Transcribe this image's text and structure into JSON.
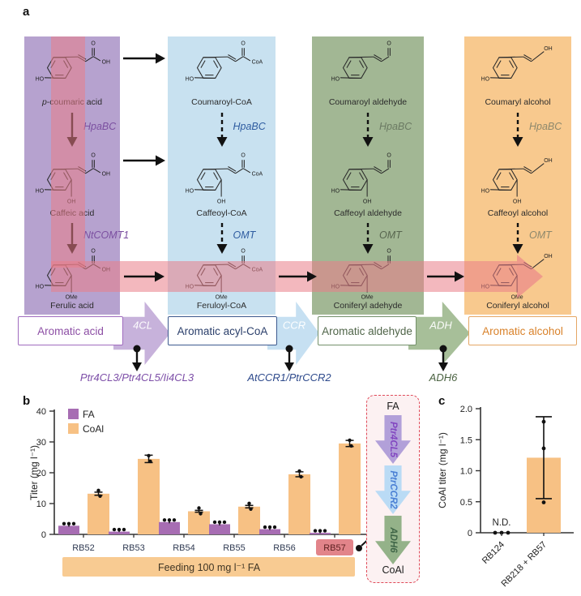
{
  "figure": {
    "panel_a_label": "a",
    "panel_b_label": "b",
    "panel_c_label": "c"
  },
  "panel_a": {
    "structure_labels": {
      "carbonyl": "O",
      "acid": "OH",
      "coa": "CoA",
      "alcohol": "OH",
      "ho": "HO",
      "oh": "OH",
      "ome": "OMe"
    },
    "columns": [
      {
        "id": "acid",
        "bg": "#b6a2cf",
        "compounds": [
          {
            "name": "p-coumaric acid",
            "head": "acid",
            "subs": [
              "HO"
            ]
          },
          {
            "name": "Caffeic acid",
            "head": "acid",
            "subs": [
              "HO",
              "OH"
            ]
          },
          {
            "name": "Ferulic acid",
            "head": "acid",
            "subs": [
              "HO",
              "OMe"
            ]
          }
        ],
        "steps": [
          {
            "enzyme": "HpaBC",
            "dashed": false,
            "color": "#7b4fa0"
          },
          {
            "enzyme": "NtCOMT1",
            "dashed": false,
            "color": "#7b4fa0"
          }
        ]
      },
      {
        "id": "acyl-coa",
        "bg": "#c8e1f0",
        "compounds": [
          {
            "name": "Coumaroyl-CoA",
            "head": "coa",
            "subs": [
              "HO"
            ]
          },
          {
            "name": "Caffeoyl-CoA",
            "head": "coa",
            "subs": [
              "HO",
              "OH"
            ]
          },
          {
            "name": "Feruloyl-CoA",
            "head": "coa",
            "subs": [
              "HO",
              "OMe"
            ]
          }
        ],
        "steps": [
          {
            "enzyme": "HpaBC",
            "dashed": true,
            "color": "#2e5ca0"
          },
          {
            "enzyme": "OMT",
            "dashed": true,
            "color": "#2e5ca0"
          }
        ]
      },
      {
        "id": "aldehyde",
        "bg": "#a2b794",
        "compounds": [
          {
            "name": "Coumaroyl aldehyde",
            "head": "aldehyde",
            "subs": [
              "HO"
            ]
          },
          {
            "name": "Caffeoyl aldehyde",
            "head": "aldehyde",
            "subs": [
              "HO",
              "OH"
            ]
          },
          {
            "name": "Coniferyl adehyde",
            "head": "aldehyde",
            "subs": [
              "HO",
              "OMe"
            ]
          }
        ],
        "steps": [
          {
            "enzyme": "HpaBC",
            "dashed": true,
            "color": "#6b7a63"
          },
          {
            "enzyme": "OMT",
            "dashed": true,
            "color": "#58664f"
          }
        ]
      },
      {
        "id": "alcohol",
        "bg": "#f8c98e",
        "compounds": [
          {
            "name": "Coumaryl alcohol",
            "head": "alcohol",
            "subs": [
              "HO"
            ]
          },
          {
            "name": "Caffeoyl alcohol",
            "head": "alcohol",
            "subs": [
              "HO",
              "OH"
            ]
          },
          {
            "name": "Coniferyl alcohol",
            "head": "alcohol",
            "subs": [
              "HO",
              "OMe"
            ]
          }
        ],
        "steps": [
          {
            "enzyme": "HpaBC",
            "dashed": true,
            "color": "#8d886c"
          },
          {
            "enzyme": "OMT",
            "dashed": true,
            "color": "#8d886c"
          }
        ]
      }
    ],
    "class_boxes": [
      {
        "label": "Aromatic acid",
        "text_color": "#8d4fa5",
        "border_color": "#a06cbf"
      },
      {
        "label": "Aromatic acyl-CoA",
        "text_color": "#2b3f6b",
        "border_color": "#3d5a8f"
      },
      {
        "label": "Aromatic aldehyde",
        "text_color": "#51664a",
        "border_color": "#74906a"
      },
      {
        "label": "Aromatic alcohol",
        "text_color": "#d9822b",
        "border_color": "#e5a765"
      }
    ],
    "step_arrows": [
      {
        "label": "4CL",
        "fill": "#c7b2db"
      },
      {
        "label": "CCR",
        "fill": "#c6e0f2"
      },
      {
        "label": "ADH",
        "fill": "#a7bf99"
      }
    ],
    "step_enzymes": [
      {
        "label": "Ptr4CL3/Ptr4CL5/Ii4CL3",
        "color": "#7d4fa8"
      },
      {
        "label": "AtCCR1/PtrCCR2",
        "color": "#2e4a8c"
      },
      {
        "label": "ADH6",
        "color": "#4b6342"
      }
    ],
    "highlight_band_color": "#e97d88"
  },
  "chart_data": [
    {
      "type": "bar",
      "panel": "b",
      "categories": [
        "RB52",
        "RB53",
        "RB54",
        "RB55",
        "RB56",
        "RB57"
      ],
      "series": [
        {
          "name": "FA",
          "color": "#a76db3",
          "values": [
            2.8,
            0.9,
            4.0,
            3.3,
            1.7,
            0.5
          ],
          "errors": [
            0.3,
            0.15,
            0.4,
            0.4,
            0.3,
            0.15
          ]
        },
        {
          "name": "CoAl",
          "color": "#f7c184",
          "values": [
            13.2,
            24.5,
            7.5,
            9.0,
            19.5,
            29.5
          ],
          "errors": [
            0.5,
            1.2,
            0.3,
            0.4,
            0.8,
            1.0
          ]
        }
      ],
      "ylabel": "Titer (mg l⁻¹)",
      "ylim": [
        0,
        40
      ],
      "yticks": [
        0,
        10,
        20,
        30,
        40
      ],
      "legend_position": "top-left",
      "annotation_band": "Feeding 100 mg l⁻¹ FA",
      "annotation_band_color": "#f8cb92",
      "highlighted_category": "RB57",
      "highlight_color": "#e2848a"
    },
    {
      "type": "bar",
      "panel": "c",
      "categories": [
        "RB124",
        "RB218 + RB57"
      ],
      "values": [
        0,
        1.21
      ],
      "bar_color": "#f7c184",
      "points": [
        [
          0,
          0,
          0
        ],
        [
          0.49,
          1.36,
          1.79
        ]
      ],
      "error_bars": [
        null,
        {
          "low": 0.55,
          "high": 1.87
        }
      ],
      "nd_label": "N.D.",
      "ylabel": "CoAl titer (mg l⁻¹)",
      "ylim": [
        0,
        2.0
      ],
      "yticks": [
        0,
        0.5,
        1.0,
        1.5,
        2.0
      ]
    }
  ],
  "inset": {
    "border_color": "#e04b5a",
    "top_label": "FA",
    "bottom_label": "CoAl",
    "steps": [
      {
        "label": "Ptr4CL5",
        "fill": "#b2a0d9",
        "text_color": "#8246c0"
      },
      {
        "label": "PtrCCR2",
        "fill": "#badbf5",
        "text_color": "#4a7fd4"
      },
      {
        "label": "ADH6",
        "fill": "#94b289",
        "text_color": "#3f6547"
      }
    ]
  }
}
